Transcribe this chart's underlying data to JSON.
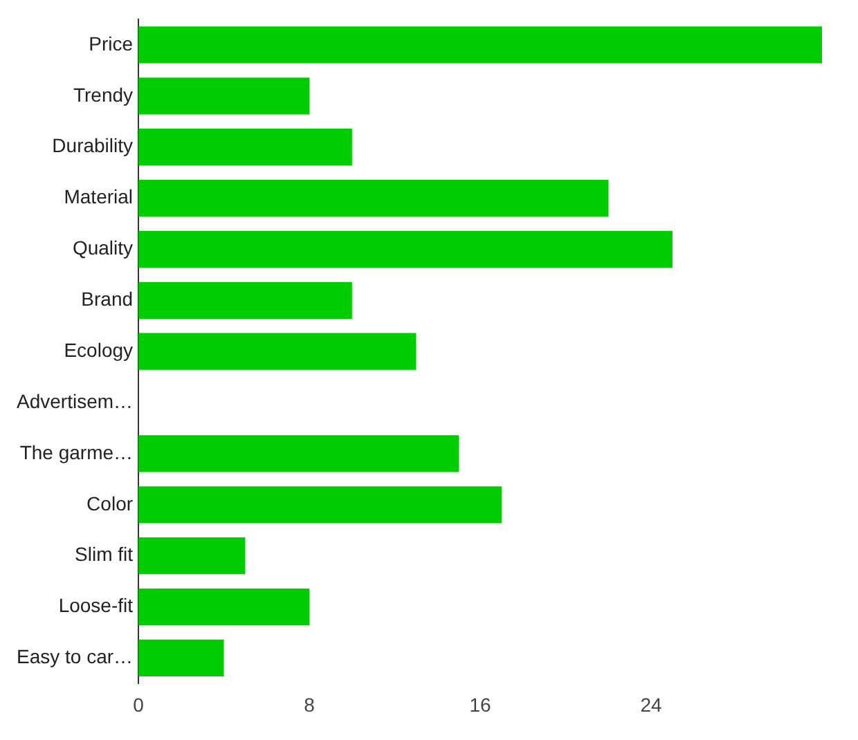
{
  "chart_data": {
    "type": "bar",
    "orientation": "horizontal",
    "categories": [
      "Price",
      "Trendy",
      "Durability",
      "Material",
      "Quality",
      "Brand",
      "Ecology",
      "Advertisem…",
      "The garme…",
      "Color",
      "Slim fit",
      "Loose-fit",
      "Easy to car…"
    ],
    "values": [
      32,
      8,
      10,
      22,
      25,
      10,
      13,
      0,
      15,
      17,
      5,
      8,
      4
    ],
    "color": "#00cc00",
    "xlim": [
      0,
      32
    ],
    "xticks": [
      0,
      8,
      16,
      24
    ],
    "grid": false,
    "legend": false
  }
}
